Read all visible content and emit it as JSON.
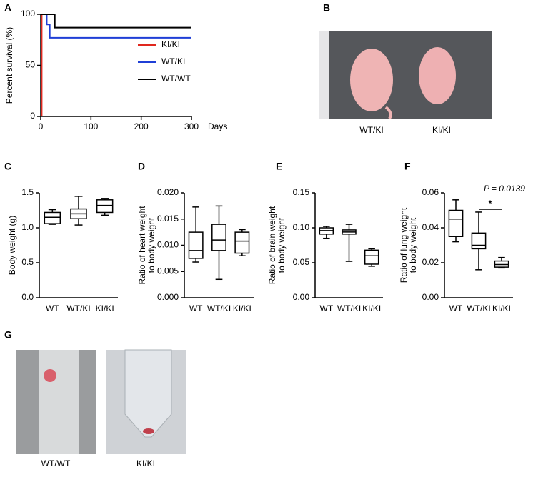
{
  "panel_letters": [
    "A",
    "B",
    "C",
    "D",
    "E",
    "F",
    "G"
  ],
  "photos": [
    {
      "captions": [
        "WT/KI",
        "KI/KI"
      ]
    },
    {
      "captions": [
        "WT/WT",
        "KI/KI"
      ]
    }
  ],
  "chart_data": [
    {
      "type": "line",
      "ylabel": "Percent survival (%)",
      "xlabel": "Days",
      "xlim": [
        0,
        300
      ],
      "xticks": [
        0,
        100,
        200,
        300
      ],
      "ylim": [
        0,
        100
      ],
      "yticks": [
        0,
        50,
        100
      ],
      "legend": "right",
      "series": [
        {
          "name": "KI/KI",
          "color": "#e0281e",
          "x": [
            0,
            2,
            2
          ],
          "values": [
            100,
            100,
            0
          ]
        },
        {
          "name": "WT/KI",
          "color": "#1f3fd6",
          "x": [
            0,
            12,
            12,
            18,
            18,
            300
          ],
          "values": [
            100,
            100,
            90,
            90,
            77,
            77
          ]
        },
        {
          "name": "WT/WT",
          "color": "#000000",
          "x": [
            0,
            28,
            28,
            300
          ],
          "values": [
            100,
            100,
            87,
            87
          ]
        }
      ]
    },
    {
      "type": "box",
      "ylabel": [
        "Body weight (g)"
      ],
      "ylim": [
        0,
        1.5
      ],
      "yticks": [
        {
          "value": 0,
          "label": "0.0"
        },
        0.5,
        {
          "value": 1,
          "label": "1.0"
        },
        1.5
      ],
      "categories": [
        "WT",
        "WT/KI",
        "KI/KI"
      ],
      "boxes": [
        {
          "min": 1.05,
          "q1": 1.06,
          "median": 1.15,
          "q3": 1.22,
          "max": 1.26
        },
        {
          "min": 1.04,
          "q1": 1.13,
          "median": 1.2,
          "q3": 1.27,
          "max": 1.45
        },
        {
          "min": 1.18,
          "q1": 1.22,
          "median": 1.32,
          "q3": 1.4,
          "max": 1.42
        }
      ]
    },
    {
      "type": "box",
      "ylabel": [
        "Ratio of heart weight",
        "to body weight"
      ],
      "ylim": [
        0,
        0.02
      ],
      "yticks": [
        {
          "value": 0,
          "label": "0.000"
        },
        0.005,
        {
          "value": 0.01,
          "label": "0.010"
        },
        0.015,
        {
          "value": 0.02,
          "label": "0.020"
        }
      ],
      "categories": [
        "WT",
        "WT/KI",
        "KI/KI"
      ],
      "boxes": [
        {
          "min": 0.0068,
          "q1": 0.0075,
          "median": 0.009,
          "q3": 0.0125,
          "max": 0.0173
        },
        {
          "min": 0.0035,
          "q1": 0.009,
          "median": 0.011,
          "q3": 0.014,
          "max": 0.0175
        },
        {
          "min": 0.008,
          "q1": 0.0085,
          "median": 0.0108,
          "q3": 0.0125,
          "max": 0.013
        }
      ]
    },
    {
      "type": "box",
      "ylabel": [
        "Ratio of brain weight",
        "to body weight"
      ],
      "ylim": [
        0,
        0.15
      ],
      "yticks": [
        {
          "value": 0,
          "label": "0.00"
        },
        0.05,
        {
          "value": 0.1,
          "label": "0.10"
        },
        0.15
      ],
      "categories": [
        "WT",
        "WT/KI",
        "KI/KI"
      ],
      "boxes": [
        {
          "min": 0.085,
          "q1": 0.091,
          "median": 0.096,
          "q3": 0.1,
          "max": 0.102
        },
        {
          "min": 0.052,
          "q1": 0.091,
          "median": 0.094,
          "q3": 0.097,
          "max": 0.105
        },
        {
          "min": 0.045,
          "q1": 0.048,
          "median": 0.06,
          "q3": 0.068,
          "max": 0.07
        }
      ]
    },
    {
      "type": "box",
      "ylabel": [
        "Ratio of lung weight",
        "to body weight"
      ],
      "ylim": [
        0,
        0.06
      ],
      "yticks": [
        {
          "value": 0,
          "label": "0.00"
        },
        0.02,
        0.04,
        0.06
      ],
      "categories": [
        "WT",
        "WT/KI",
        "KI/KI"
      ],
      "boxes": [
        {
          "min": 0.032,
          "q1": 0.035,
          "median": 0.045,
          "q3": 0.05,
          "max": 0.056
        },
        {
          "min": 0.016,
          "q1": 0.028,
          "median": 0.03,
          "q3": 0.037,
          "max": 0.049
        },
        {
          "min": 0.017,
          "q1": 0.0175,
          "median": 0.019,
          "q3": 0.021,
          "max": 0.023
        }
      ],
      "annotations": [
        "P = 0.0139",
        "*"
      ]
    }
  ]
}
